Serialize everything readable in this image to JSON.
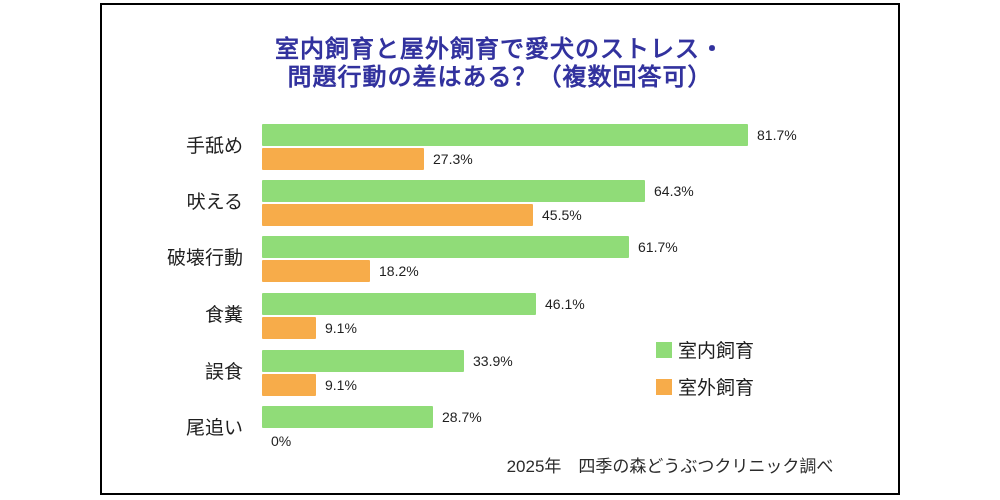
{
  "title": {
    "line1": "室内飼育と屋外飼育で愛犬のストレス・",
    "line2": "問題行動の差はある？（複数回答可）",
    "color": "#32329e"
  },
  "chart_data": {
    "type": "bar",
    "orientation": "horizontal",
    "title": "室内飼育と屋外飼育で愛犬のストレス・問題行動の差はある？（複数回答可）",
    "categories": [
      "手舐め",
      "吠える",
      "破壊行動",
      "食糞",
      "誤食",
      "尾追い"
    ],
    "series": [
      {
        "name": "室内飼育",
        "color": "#90dc78",
        "values": [
          81.7,
          64.3,
          61.7,
          46.1,
          33.9,
          28.7
        ]
      },
      {
        "name": "室外飼育",
        "color": "#f7ac4a",
        "values": [
          27.3,
          45.5,
          18.2,
          9.1,
          9.1,
          0
        ]
      }
    ],
    "value_suffix": "%",
    "xlim": [
      0,
      100
    ],
    "grid": false,
    "legend_position": "right-middle",
    "data_labels": true
  },
  "legend": {
    "items": [
      {
        "label": "室内飼育",
        "color": "#90dc78"
      },
      {
        "label": "室外飼育",
        "color": "#f7ac4a"
      }
    ]
  },
  "footer": {
    "text": "2025年　四季の森どうぶつクリニック調べ"
  }
}
